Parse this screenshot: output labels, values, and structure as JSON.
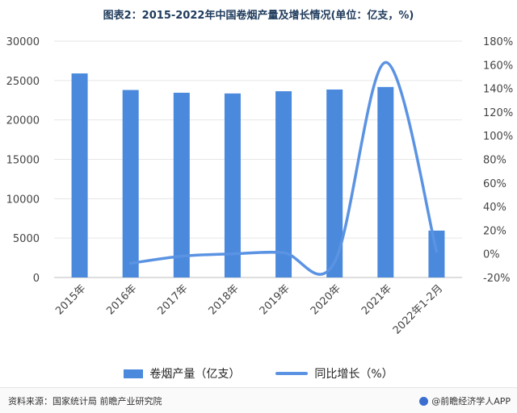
{
  "title": "图表2：2015-2022年中国卷烟产量及增长情况(单位：亿支，%)",
  "legend": {
    "bar_label": "卷烟产量（亿支）",
    "line_label": "同比增长（%）"
  },
  "footer": {
    "source": "资料来源：国家统计局 前瞻产业研究院",
    "brand": "@前瞻经济学人APP"
  },
  "colors": {
    "bar": "#4a89dc",
    "line": "#5b93e3",
    "title": "#1f3b5c"
  },
  "chart_data": {
    "type": "bar",
    "categories": [
      "2015年",
      "2016年",
      "2017年",
      "2018年",
      "2019年",
      "2020年",
      "2021年",
      "2022年1-2月"
    ],
    "series": [
      {
        "name": "卷烟产量（亿支）",
        "type": "bar",
        "axis": "left",
        "values": [
          25900,
          23800,
          23450,
          23360,
          23640,
          23860,
          24180,
          5950
        ]
      },
      {
        "name": "同比增长（%）",
        "type": "line",
        "axis": "right",
        "values": [
          null,
          -8,
          -2,
          0,
          1,
          -7,
          162,
          2
        ]
      }
    ],
    "y_left": {
      "ylim": [
        0,
        30000
      ],
      "ticks": [
        0,
        5000,
        10000,
        15000,
        20000,
        25000,
        30000
      ]
    },
    "y_right": {
      "ylim": [
        -20,
        180
      ],
      "ticks": [
        "-20%",
        "0%",
        "20%",
        "40%",
        "60%",
        "80%",
        "100%",
        "120%",
        "140%",
        "160%",
        "180%"
      ]
    },
    "grid": true,
    "legend_position": "bottom"
  }
}
